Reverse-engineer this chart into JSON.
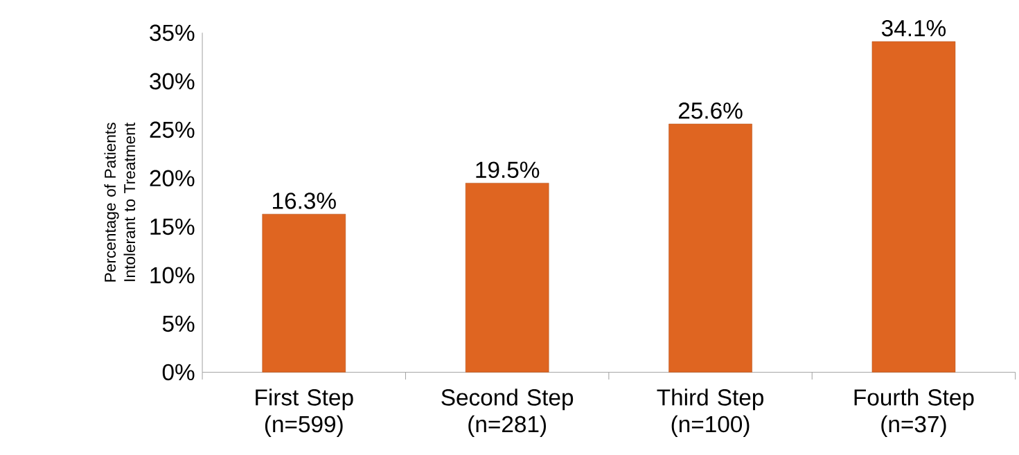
{
  "chart_data": {
    "type": "bar",
    "ylabel": "Percentage of Patients Intolerant to Treatment",
    "categories": [
      "First Step (n=599)",
      "Second Step (n=281)",
      "Third Step (n=100)",
      "Fourth Step (n=37)"
    ],
    "values": [
      16.3,
      19.5,
      25.6,
      34.1
    ],
    "value_labels": [
      "16.3%",
      "19.5%",
      "25.6%",
      "34.1%"
    ],
    "color": "#df6521",
    "ylim": [
      0,
      35
    ],
    "yticks": [
      {
        "value": 0,
        "label": "0%"
      },
      {
        "value": 5,
        "label": "5%"
      },
      {
        "value": 10,
        "label": "10%"
      },
      {
        "value": 15,
        "label": "15%"
      },
      {
        "value": 20,
        "label": "20%"
      },
      {
        "value": 25,
        "label": "25%"
      },
      {
        "value": 30,
        "label": "30%"
      },
      {
        "value": 35,
        "label": "35%"
      }
    ],
    "grid": false
  }
}
